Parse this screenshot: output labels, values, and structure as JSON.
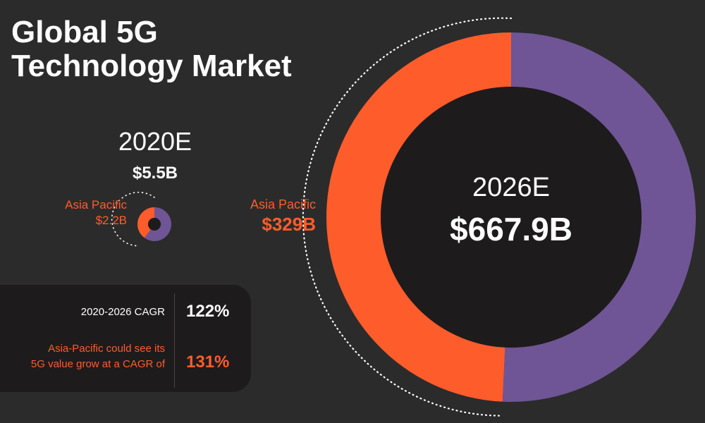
{
  "title_lines": [
    "Global 5G",
    "Technology Market"
  ],
  "colors": {
    "background": "#2b2b2b",
    "asia_pacific": "#ff5c2b",
    "rest_of_world": "#6f5595",
    "center": "#1e1b1c",
    "panel": "#1e1b1c"
  },
  "chart_data": [
    {
      "type": "pie",
      "title": "2020E",
      "total_label": "$5.5B",
      "total": 5.5,
      "slices": [
        {
          "label": "Asia Pacific",
          "value": 2.2,
          "value_label": "$2.2B"
        },
        {
          "label": "",
          "value": 3.3
        }
      ]
    },
    {
      "type": "pie",
      "title": "2026E",
      "total_label": "$667.9B",
      "total": 667.9,
      "slices": [
        {
          "label": "Asia Pacific",
          "value": 329,
          "value_label": "$329B"
        },
        {
          "label": "",
          "value": 338.9
        }
      ]
    }
  ],
  "cagr": {
    "label": "2020-2026 CAGR",
    "value": "122%",
    "ap_label_lines": [
      "Asia-Pacific could see its",
      "5G value grow at a CAGR of"
    ],
    "ap_value": "131%"
  }
}
